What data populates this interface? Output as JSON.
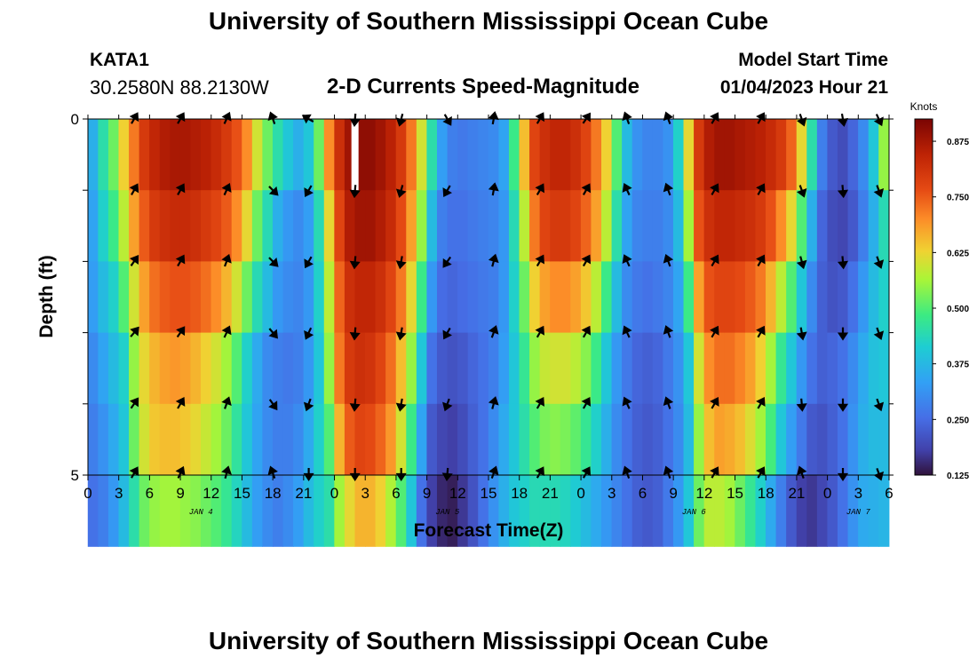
{
  "page": {
    "title_top": "University of Southern Mississippi Ocean Cube",
    "title_bottom": "University of Southern Mississippi Ocean Cube",
    "station_name": "KATA1",
    "station_coords": "30.2580N  88.2130W",
    "chart_title": "2-D Currents Speed-Magnitude",
    "model_label": "Model Start Time",
    "model_time": "01/04/2023 Hour 21"
  },
  "chart_data": {
    "type": "heatmap",
    "title": "2-D Currents Speed-Magnitude",
    "xlabel": "Forecast Time(Z)",
    "ylabel": "Depth (ft)",
    "x_start_hour": 0,
    "x_end_hour": 78,
    "x_ticks": [
      "0",
      "3",
      "6",
      "9",
      "12",
      "15",
      "18",
      "21",
      "0",
      "3",
      "6",
      "9",
      "12",
      "15",
      "18",
      "21",
      "0",
      "3",
      "6",
      "9",
      "12",
      "15",
      "18",
      "21",
      "0",
      "3",
      "6"
    ],
    "date_labels": [
      {
        "text": "JAN 4",
        "hour": 11
      },
      {
        "text": "JAN 5",
        "hour": 35
      },
      {
        "text": "JAN 6",
        "hour": 59
      },
      {
        "text": "JAN 7",
        "hour": 75
      }
    ],
    "y_ticks": [
      {
        "label": "0",
        "depth": 0
      },
      {
        "label": "",
        "depth": 1
      },
      {
        "label": "",
        "depth": 2
      },
      {
        "label": "",
        "depth": 3
      },
      {
        "label": "",
        "depth": 4
      },
      {
        "label": "5",
        "depth": 5
      }
    ],
    "ylim": [
      0,
      5
    ],
    "colorbar": {
      "label": "Knots",
      "min": 0.125,
      "max": 0.925,
      "ticks": [
        "0.875",
        "0.750",
        "0.625",
        "0.500",
        "0.375",
        "0.250",
        "0.125"
      ],
      "tick_values": [
        0.875,
        0.75,
        0.625,
        0.5,
        0.375,
        0.25,
        0.125
      ]
    },
    "columns": [
      {
        "hour": 0,
        "values": [
          0.36,
          0.34,
          0.33,
          0.3,
          0.28,
          0.26
        ]
      },
      {
        "hour": 1,
        "values": [
          0.45,
          0.42,
          0.38,
          0.34,
          0.31,
          0.28
        ]
      },
      {
        "hour": 2,
        "values": [
          0.52,
          0.48,
          0.42,
          0.38,
          0.35,
          0.32
        ]
      },
      {
        "hour": 3,
        "values": [
          0.63,
          0.58,
          0.5,
          0.42,
          0.4,
          0.38
        ]
      },
      {
        "hour": 4,
        "values": [
          0.72,
          0.68,
          0.6,
          0.55,
          0.52,
          0.45
        ]
      },
      {
        "hour": 5,
        "values": [
          0.8,
          0.75,
          0.68,
          0.62,
          0.6,
          0.52
        ]
      },
      {
        "hour": 6,
        "values": [
          0.84,
          0.8,
          0.73,
          0.66,
          0.64,
          0.55
        ]
      },
      {
        "hour": 7,
        "values": [
          0.86,
          0.82,
          0.75,
          0.68,
          0.65,
          0.56
        ]
      },
      {
        "hour": 8,
        "values": [
          0.87,
          0.83,
          0.76,
          0.69,
          0.65,
          0.56
        ]
      },
      {
        "hour": 9,
        "values": [
          0.87,
          0.83,
          0.76,
          0.68,
          0.64,
          0.55
        ]
      },
      {
        "hour": 10,
        "values": [
          0.86,
          0.82,
          0.75,
          0.66,
          0.62,
          0.54
        ]
      },
      {
        "hour": 11,
        "values": [
          0.85,
          0.8,
          0.73,
          0.63,
          0.59,
          0.52
        ]
      },
      {
        "hour": 12,
        "values": [
          0.83,
          0.78,
          0.7,
          0.6,
          0.56,
          0.5
        ]
      },
      {
        "hour": 13,
        "values": [
          0.8,
          0.75,
          0.66,
          0.56,
          0.52,
          0.47
        ]
      },
      {
        "hour": 14,
        "values": [
          0.76,
          0.7,
          0.6,
          0.5,
          0.46,
          0.43
        ]
      },
      {
        "hour": 15,
        "values": [
          0.7,
          0.62,
          0.52,
          0.42,
          0.4,
          0.38
        ]
      },
      {
        "hour": 16,
        "values": [
          0.6,
          0.52,
          0.44,
          0.35,
          0.34,
          0.33
        ]
      },
      {
        "hour": 17,
        "values": [
          0.52,
          0.44,
          0.38,
          0.3,
          0.3,
          0.3
        ]
      },
      {
        "hour": 18,
        "values": [
          0.45,
          0.36,
          0.32,
          0.28,
          0.28,
          0.28
        ]
      },
      {
        "hour": 19,
        "values": [
          0.4,
          0.32,
          0.3,
          0.27,
          0.28,
          0.3
        ]
      },
      {
        "hour": 20,
        "values": [
          0.36,
          0.3,
          0.29,
          0.28,
          0.3,
          0.33
        ]
      },
      {
        "hour": 21,
        "values": [
          0.4,
          0.33,
          0.32,
          0.32,
          0.35,
          0.38
        ]
      },
      {
        "hour": 22,
        "values": [
          0.52,
          0.44,
          0.42,
          0.4,
          0.42,
          0.42
        ]
      },
      {
        "hour": 23,
        "values": [
          0.7,
          0.62,
          0.58,
          0.55,
          0.5,
          0.45
        ]
      },
      {
        "hour": 24,
        "values": [
          0.82,
          0.78,
          0.74,
          0.72,
          0.66,
          0.56
        ]
      },
      {
        "hour": 25,
        "values": [
          0.88,
          0.86,
          0.82,
          0.8,
          0.75,
          0.62
        ]
      },
      {
        "hour": 26,
        "values": [
          0.9,
          0.88,
          0.84,
          0.82,
          0.78,
          0.66
        ]
      },
      {
        "hour": 27,
        "values": [
          0.9,
          0.88,
          0.84,
          0.81,
          0.77,
          0.66
        ]
      },
      {
        "hour": 28,
        "values": [
          0.88,
          0.86,
          0.82,
          0.78,
          0.74,
          0.63
        ]
      },
      {
        "hour": 29,
        "values": [
          0.85,
          0.83,
          0.78,
          0.73,
          0.69,
          0.57
        ]
      },
      {
        "hour": 30,
        "values": [
          0.8,
          0.77,
          0.72,
          0.65,
          0.6,
          0.5
        ]
      },
      {
        "hour": 31,
        "values": [
          0.72,
          0.68,
          0.62,
          0.55,
          0.48,
          0.4
        ]
      },
      {
        "hour": 32,
        "values": [
          0.6,
          0.55,
          0.48,
          0.4,
          0.34,
          0.26
        ]
      },
      {
        "hour": 33,
        "values": [
          0.45,
          0.38,
          0.32,
          0.26,
          0.22,
          0.18
        ]
      },
      {
        "hour": 34,
        "values": [
          0.33,
          0.28,
          0.25,
          0.22,
          0.19,
          0.15
        ]
      },
      {
        "hour": 35,
        "values": [
          0.28,
          0.26,
          0.24,
          0.21,
          0.18,
          0.14
        ]
      },
      {
        "hour": 36,
        "values": [
          0.27,
          0.26,
          0.25,
          0.22,
          0.2,
          0.17
        ]
      },
      {
        "hour": 37,
        "values": [
          0.28,
          0.27,
          0.26,
          0.24,
          0.23,
          0.21
        ]
      },
      {
        "hour": 38,
        "values": [
          0.29,
          0.28,
          0.27,
          0.26,
          0.26,
          0.26
        ]
      },
      {
        "hour": 39,
        "values": [
          0.3,
          0.29,
          0.28,
          0.28,
          0.3,
          0.31
        ]
      },
      {
        "hour": 40,
        "values": [
          0.34,
          0.32,
          0.32,
          0.33,
          0.35,
          0.36
        ]
      },
      {
        "hour": 41,
        "values": [
          0.48,
          0.44,
          0.42,
          0.4,
          0.4,
          0.4
        ]
      },
      {
        "hour": 42,
        "values": [
          0.65,
          0.58,
          0.52,
          0.47,
          0.45,
          0.42
        ]
      },
      {
        "hour": 43,
        "values": [
          0.78,
          0.72,
          0.63,
          0.55,
          0.5,
          0.44
        ]
      },
      {
        "hour": 44,
        "values": [
          0.82,
          0.78,
          0.68,
          0.59,
          0.53,
          0.44
        ]
      },
      {
        "hour": 45,
        "values": [
          0.84,
          0.8,
          0.7,
          0.6,
          0.54,
          0.44
        ]
      },
      {
        "hour": 46,
        "values": [
          0.84,
          0.8,
          0.7,
          0.6,
          0.53,
          0.43
        ]
      },
      {
        "hour": 47,
        "values": [
          0.82,
          0.78,
          0.68,
          0.58,
          0.51,
          0.41
        ]
      },
      {
        "hour": 48,
        "values": [
          0.78,
          0.74,
          0.64,
          0.54,
          0.47,
          0.38
        ]
      },
      {
        "hour": 49,
        "values": [
          0.72,
          0.68,
          0.58,
          0.48,
          0.42,
          0.35
        ]
      },
      {
        "hour": 50,
        "values": [
          0.63,
          0.58,
          0.48,
          0.4,
          0.36,
          0.32
        ]
      },
      {
        "hour": 51,
        "values": [
          0.5,
          0.45,
          0.38,
          0.32,
          0.3,
          0.29
        ]
      },
      {
        "hour": 52,
        "values": [
          0.38,
          0.34,
          0.3,
          0.27,
          0.26,
          0.26
        ]
      },
      {
        "hour": 53,
        "values": [
          0.31,
          0.29,
          0.27,
          0.24,
          0.23,
          0.23
        ]
      },
      {
        "hour": 54,
        "values": [
          0.29,
          0.28,
          0.26,
          0.23,
          0.22,
          0.22
        ]
      },
      {
        "hour": 55,
        "values": [
          0.29,
          0.28,
          0.27,
          0.24,
          0.23,
          0.23
        ]
      },
      {
        "hour": 56,
        "values": [
          0.31,
          0.3,
          0.29,
          0.27,
          0.26,
          0.27
        ]
      },
      {
        "hour": 57,
        "values": [
          0.42,
          0.38,
          0.34,
          0.31,
          0.3,
          0.32
        ]
      },
      {
        "hour": 58,
        "values": [
          0.62,
          0.56,
          0.48,
          0.4,
          0.38,
          0.4
        ]
      },
      {
        "hour": 59,
        "values": [
          0.8,
          0.76,
          0.68,
          0.6,
          0.55,
          0.52
        ]
      },
      {
        "hour": 60,
        "values": [
          0.86,
          0.82,
          0.76,
          0.7,
          0.65,
          0.58
        ]
      },
      {
        "hour": 61,
        "values": [
          0.88,
          0.84,
          0.78,
          0.73,
          0.68,
          0.58
        ]
      },
      {
        "hour": 62,
        "values": [
          0.88,
          0.84,
          0.78,
          0.73,
          0.67,
          0.56
        ]
      },
      {
        "hour": 63,
        "values": [
          0.87,
          0.83,
          0.77,
          0.71,
          0.65,
          0.52
        ]
      },
      {
        "hour": 64,
        "values": [
          0.86,
          0.82,
          0.75,
          0.68,
          0.61,
          0.47
        ]
      },
      {
        "hour": 65,
        "values": [
          0.85,
          0.8,
          0.72,
          0.63,
          0.56,
          0.42
        ]
      },
      {
        "hour": 66,
        "values": [
          0.83,
          0.76,
          0.66,
          0.56,
          0.49,
          0.35
        ]
      },
      {
        "hour": 67,
        "values": [
          0.8,
          0.7,
          0.58,
          0.47,
          0.4,
          0.28
        ]
      },
      {
        "hour": 68,
        "values": [
          0.74,
          0.62,
          0.5,
          0.4,
          0.33,
          0.22
        ]
      },
      {
        "hour": 69,
        "values": [
          0.62,
          0.5,
          0.4,
          0.32,
          0.27,
          0.18
        ]
      },
      {
        "hour": 70,
        "values": [
          0.45,
          0.36,
          0.3,
          0.26,
          0.22,
          0.17
        ]
      },
      {
        "hour": 71,
        "values": [
          0.28,
          0.24,
          0.23,
          0.23,
          0.21,
          0.19
        ]
      },
      {
        "hour": 72,
        "values": [
          0.22,
          0.2,
          0.21,
          0.24,
          0.23,
          0.22
        ]
      },
      {
        "hour": 73,
        "values": [
          0.2,
          0.19,
          0.22,
          0.26,
          0.26,
          0.26
        ]
      },
      {
        "hour": 74,
        "values": [
          0.24,
          0.22,
          0.26,
          0.3,
          0.31,
          0.31
        ]
      },
      {
        "hour": 75,
        "values": [
          0.3,
          0.28,
          0.32,
          0.35,
          0.36,
          0.35
        ]
      },
      {
        "hour": 76,
        "values": [
          0.4,
          0.36,
          0.38,
          0.39,
          0.38,
          0.36
        ]
      },
      {
        "hour": 77,
        "values": [
          0.55,
          0.44,
          0.42,
          0.4,
          0.38,
          0.37
        ]
      }
    ],
    "vector_depths": [
      0,
      1,
      2,
      3,
      4,
      5
    ],
    "vectors": [
      {
        "hour": 4.5,
        "directions": [
          300,
          300,
          305,
          310,
          305,
          300
        ]
      },
      {
        "hour": 9,
        "directions": [
          300,
          300,
          300,
          305,
          300,
          295
        ]
      },
      {
        "hour": 13.5,
        "directions": [
          295,
          295,
          290,
          295,
          290,
          285
        ]
      },
      {
        "hour": 18,
        "directions": [
          250,
          45,
          45,
          50,
          55,
          250
        ]
      },
      {
        "hour": 21.5,
        "directions": [
          210,
          120,
          120,
          115,
          110,
          90
        ]
      },
      {
        "hour": 26,
        "directions": [
          95,
          95,
          95,
          95,
          95,
          90
        ]
      },
      {
        "hour": 30.5,
        "directions": [
          105,
          105,
          100,
          100,
          100,
          90
        ]
      },
      {
        "hour": 35,
        "directions": [
          60,
          120,
          125,
          120,
          110,
          95
        ]
      },
      {
        "hour": 39.5,
        "directions": [
          280,
          280,
          285,
          290,
          285,
          290
        ]
      },
      {
        "hour": 44,
        "directions": [
          300,
          300,
          300,
          300,
          300,
          300
        ]
      },
      {
        "hour": 48.5,
        "directions": [
          305,
          300,
          300,
          300,
          300,
          300
        ]
      },
      {
        "hour": 52.5,
        "directions": [
          250,
          245,
          245,
          245,
          245,
          250
        ]
      },
      {
        "hour": 56.5,
        "directions": [
          250,
          250,
          250,
          250,
          250,
          250
        ]
      },
      {
        "hour": 61,
        "directions": [
          300,
          300,
          300,
          300,
          300,
          300
        ]
      },
      {
        "hour": 65.5,
        "directions": [
          300,
          300,
          300,
          300,
          300,
          300
        ]
      },
      {
        "hour": 69.5,
        "directions": [
          70,
          70,
          75,
          80,
          85,
          250
        ]
      },
      {
        "hour": 73.5,
        "directions": [
          80,
          85,
          85,
          90,
          90,
          90
        ]
      },
      {
        "hour": 77,
        "directions": [
          65,
          70,
          70,
          70,
          70,
          70
        ]
      }
    ]
  }
}
